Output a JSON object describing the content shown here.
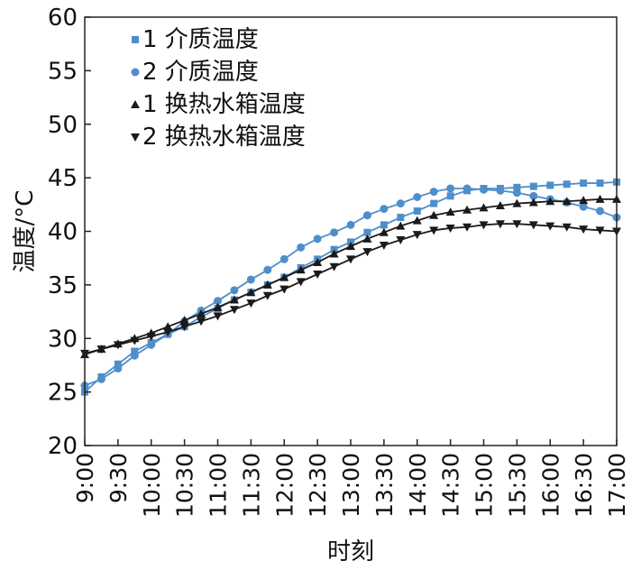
{
  "chart_data": {
    "type": "line",
    "xlabel": "时刻",
    "ylabel": "温度/°C",
    "ylim": [
      20,
      60
    ],
    "yticks": [
      20,
      25,
      30,
      35,
      40,
      45,
      50,
      55,
      60
    ],
    "xlim": [
      0,
      480
    ],
    "xticks": [
      {
        "t": 0,
        "label": "9:00"
      },
      {
        "t": 30,
        "label": "9:30"
      },
      {
        "t": 60,
        "label": "10:00"
      },
      {
        "t": 90,
        "label": "10:30"
      },
      {
        "t": 120,
        "label": "11:00"
      },
      {
        "t": 150,
        "label": "11:30"
      },
      {
        "t": 180,
        "label": "12:00"
      },
      {
        "t": 210,
        "label": "12:30"
      },
      {
        "t": 240,
        "label": "13:00"
      },
      {
        "t": 270,
        "label": "13:30"
      },
      {
        "t": 300,
        "label": "14:00"
      },
      {
        "t": 330,
        "label": "14:30"
      },
      {
        "t": 360,
        "label": "15:00"
      },
      {
        "t": 390,
        "label": "15:30"
      },
      {
        "t": 420,
        "label": "16:00"
      },
      {
        "t": 450,
        "label": "16:30"
      },
      {
        "t": 480,
        "label": "17:00"
      }
    ],
    "x_unit": "minutes after 9:00",
    "legend_position": "top-left",
    "series": [
      {
        "name": "1 介质温度",
        "marker": "square",
        "color": "#4f8ec9",
        "x": [
          0,
          15,
          30,
          45,
          60,
          75,
          90,
          105,
          120,
          135,
          150,
          165,
          180,
          195,
          210,
          225,
          240,
          255,
          270,
          285,
          300,
          315,
          330,
          345,
          360,
          375,
          390,
          405,
          420,
          435,
          450,
          465,
          480
        ],
        "y": [
          25.0,
          26.4,
          27.6,
          28.8,
          29.6,
          30.4,
          31.1,
          32.0,
          32.8,
          33.6,
          34.3,
          35.0,
          35.7,
          36.6,
          37.4,
          38.3,
          39.0,
          39.9,
          40.6,
          41.3,
          41.9,
          42.6,
          43.3,
          43.8,
          44.0,
          44.0,
          44.1,
          44.2,
          44.3,
          44.4,
          44.5,
          44.5,
          44.6
        ]
      },
      {
        "name": "2 介质温度",
        "marker": "circle",
        "color": "#4f8ec9",
        "x": [
          0,
          15,
          30,
          45,
          60,
          75,
          90,
          105,
          120,
          135,
          150,
          165,
          180,
          195,
          210,
          225,
          240,
          255,
          270,
          285,
          300,
          315,
          330,
          345,
          360,
          375,
          390,
          405,
          420,
          435,
          450,
          465,
          480
        ],
        "y": [
          25.6,
          26.2,
          27.2,
          28.4,
          29.4,
          30.4,
          31.6,
          32.6,
          33.5,
          34.5,
          35.5,
          36.4,
          37.4,
          38.5,
          39.3,
          39.9,
          40.6,
          41.5,
          42.1,
          42.6,
          43.2,
          43.7,
          44.0,
          44.0,
          43.9,
          43.8,
          43.6,
          43.3,
          43.0,
          42.7,
          42.3,
          41.9,
          41.3
        ]
      },
      {
        "name": "1 换热水箱温度",
        "marker": "triangle-up",
        "color": "#1a1a1a",
        "x": [
          0,
          15,
          30,
          45,
          60,
          75,
          90,
          105,
          120,
          135,
          150,
          165,
          180,
          195,
          210,
          225,
          240,
          255,
          270,
          285,
          300,
          315,
          330,
          345,
          360,
          375,
          390,
          405,
          420,
          435,
          450,
          465,
          480
        ],
        "y": [
          28.5,
          29.0,
          29.5,
          30.0,
          30.5,
          31.1,
          31.7,
          32.3,
          32.9,
          33.6,
          34.3,
          35.0,
          35.7,
          36.4,
          37.1,
          37.9,
          38.6,
          39.3,
          39.9,
          40.5,
          41.0,
          41.5,
          41.8,
          42.0,
          42.2,
          42.4,
          42.6,
          42.7,
          42.8,
          42.8,
          42.9,
          43.0,
          43.0
        ]
      },
      {
        "name": "2 换热水箱温度",
        "marker": "triangle-down",
        "color": "#1a1a1a",
        "x": [
          0,
          15,
          30,
          45,
          60,
          75,
          90,
          105,
          120,
          135,
          150,
          165,
          180,
          195,
          210,
          225,
          240,
          255,
          270,
          285,
          300,
          315,
          330,
          345,
          360,
          375,
          390,
          405,
          420,
          435,
          450,
          465,
          480
        ],
        "y": [
          28.6,
          29.0,
          29.4,
          29.8,
          30.2,
          30.6,
          31.1,
          31.6,
          32.1,
          32.7,
          33.3,
          34.0,
          34.6,
          35.3,
          36.0,
          36.7,
          37.4,
          38.1,
          38.7,
          39.2,
          39.7,
          40.1,
          40.3,
          40.4,
          40.6,
          40.7,
          40.7,
          40.6,
          40.5,
          40.4,
          40.2,
          40.1,
          40.0
        ]
      }
    ]
  }
}
